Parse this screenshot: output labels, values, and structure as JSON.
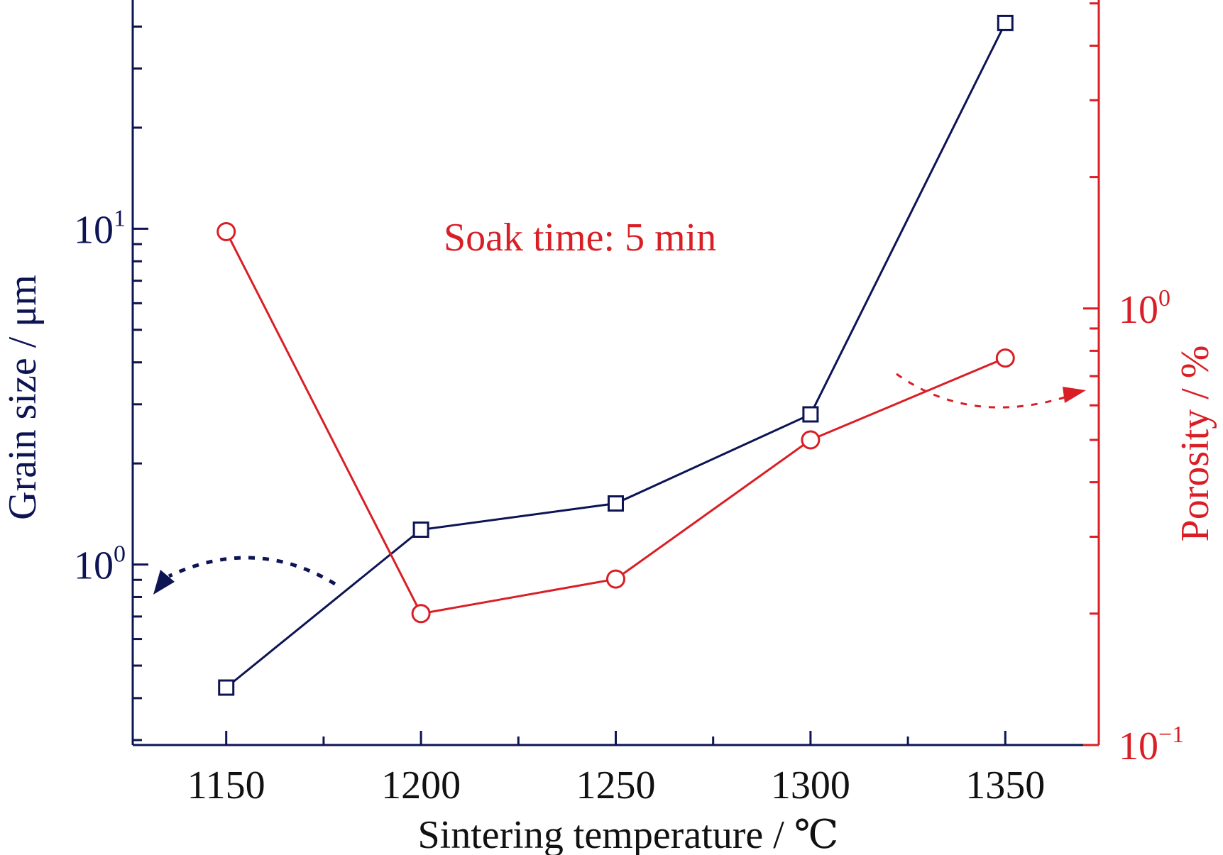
{
  "chart_data": {
    "type": "line",
    "xlabel": "Sintering temperature / ℃",
    "x_ticks": [
      1150,
      1200,
      1250,
      1300,
      1350
    ],
    "x_minor_ticks": [
      1175,
      1225,
      1275,
      1325
    ],
    "xlim": [
      1126,
      1374
    ],
    "y_left": {
      "label": "Grain size / μm",
      "scale": "log",
      "lim": [
        0.29,
        48
      ],
      "major_ticks": [
        {
          "value": 1,
          "base": "10",
          "exp": "0"
        },
        {
          "value": 10,
          "base": "10",
          "exp": "1"
        }
      ],
      "minor_ticks": [
        0.3,
        0.4,
        0.5,
        0.6,
        0.7,
        0.8,
        0.9,
        2,
        3,
        4,
        5,
        6,
        7,
        8,
        9,
        20,
        30,
        40
      ],
      "color": "#0d1454"
    },
    "y_right": {
      "label": "Porosity / %",
      "scale": "log",
      "lim": [
        0.1,
        5.09
      ],
      "major_ticks": [
        {
          "value": 0.1,
          "base": "10",
          "exp": "−1"
        },
        {
          "value": 1,
          "base": "10",
          "exp": "0"
        }
      ],
      "minor_ticks": [
        0.2,
        0.3,
        0.4,
        0.5,
        0.6,
        0.7,
        0.8,
        0.9,
        2,
        3,
        4,
        5
      ],
      "color": "#d91f26"
    },
    "series": [
      {
        "marker": "square",
        "axis": "left",
        "color": "#0d1454",
        "x": [
          1150,
          1200,
          1250,
          1300,
          1350
        ],
        "y": [
          0.43,
          1.27,
          1.52,
          2.8,
          41
        ]
      },
      {
        "marker": "circle",
        "axis": "right",
        "color": "#d91f26",
        "x": [
          1150,
          1200,
          1250,
          1300,
          1350
        ],
        "y": [
          1.5,
          0.2,
          0.24,
          0.5,
          0.77
        ]
      }
    ],
    "annotation": "Soak time: 5 min"
  }
}
